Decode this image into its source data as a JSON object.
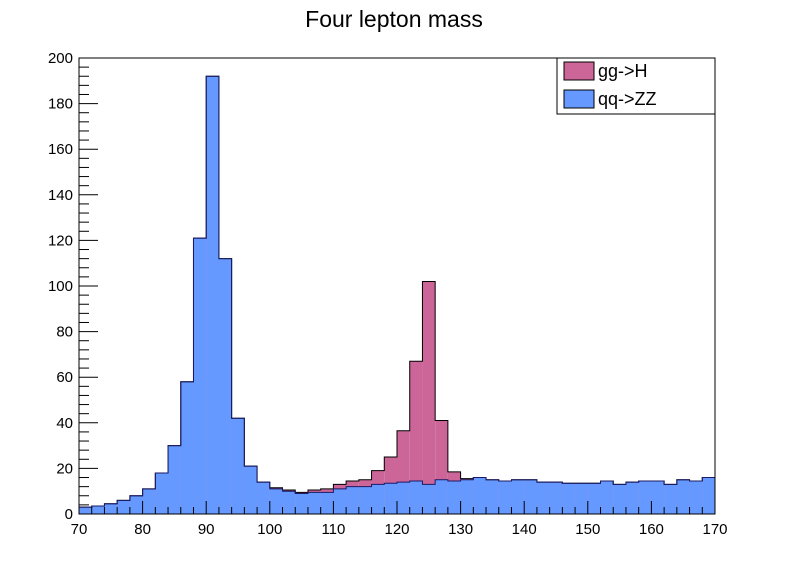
{
  "chart_data": {
    "type": "bar",
    "subtype": "stacked-histogram",
    "title": "Four lepton mass",
    "xlabel": "",
    "ylabel": "",
    "xlim": [
      70,
      170
    ],
    "ylim": [
      0,
      200
    ],
    "bin_width": 2,
    "grid": false,
    "legend_position": "top-right",
    "x_ticks": [
      70,
      80,
      90,
      100,
      110,
      120,
      130,
      140,
      150,
      160,
      170
    ],
    "y_ticks": [
      0,
      20,
      40,
      60,
      80,
      100,
      120,
      140,
      160,
      180,
      200
    ],
    "bin_edges_start": [
      70,
      72,
      74,
      76,
      78,
      80,
      82,
      84,
      86,
      88,
      90,
      92,
      94,
      96,
      98,
      100,
      102,
      104,
      106,
      108,
      110,
      112,
      114,
      116,
      118,
      120,
      122,
      124,
      126,
      128,
      130,
      132,
      134,
      136,
      138,
      140,
      142,
      144,
      146,
      148,
      150,
      152,
      154,
      156,
      158,
      160,
      162,
      164,
      166,
      168
    ],
    "series": [
      {
        "name": "qq->ZZ",
        "color": "#6699ff",
        "values": [
          3,
          3.5,
          4.5,
          6,
          8,
          11,
          18,
          30,
          58,
          121,
          192,
          112,
          42,
          21,
          14,
          11,
          10,
          9,
          9.5,
          9.5,
          11,
          12,
          12,
          13,
          13.5,
          14,
          14.5,
          13,
          15,
          14.5,
          15,
          16,
          15,
          14.5,
          15,
          15,
          14,
          14,
          13.5,
          13.5,
          13.5,
          14.5,
          13,
          14,
          14.5,
          14.5,
          13,
          15,
          14.5,
          16
        ]
      },
      {
        "name": "gg->H",
        "color": "#cc6699",
        "values": [
          0,
          0,
          0,
          0,
          0,
          0,
          0,
          0,
          0,
          0,
          0,
          0,
          0,
          0,
          0,
          0.5,
          0.5,
          0.5,
          1,
          1.5,
          2,
          2.5,
          3,
          6,
          11.5,
          22.5,
          52.5,
          89,
          26,
          4,
          0.5,
          0,
          0,
          0,
          0,
          0,
          0,
          0,
          0,
          0,
          0,
          0,
          0,
          0,
          0,
          0,
          0,
          0,
          0,
          0
        ]
      }
    ]
  }
}
